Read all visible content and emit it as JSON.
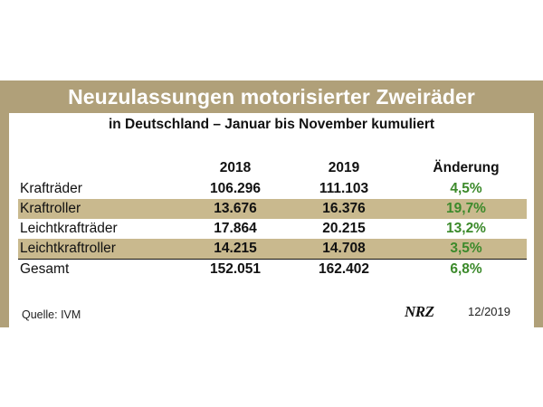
{
  "title": "Neuzulassungen motorisierter Zweiräder",
  "subtitle": "in Deutschland – Januar bis November kumuliert",
  "colors": {
    "frame": "#b0a079",
    "shade": "#c9b98e",
    "positive": "#3c8a2b"
  },
  "chart_data": {
    "type": "table",
    "columns": [
      "",
      "2018",
      "2019",
      "Änderung"
    ],
    "rows": [
      {
        "label": "Krafträder",
        "y2018": "106.296",
        "y2019": "111.103",
        "change": "4,5%",
        "shaded": false
      },
      {
        "label": "Kraftroller",
        "y2018": "13.676",
        "y2019": "16.376",
        "change": "19,7%",
        "shaded": true
      },
      {
        "label": "Leichtkrafträder",
        "y2018": "17.864",
        "y2019": "20.215",
        "change": "13,2%",
        "shaded": false
      },
      {
        "label": "Leichtkraftroller",
        "y2018": "14.215",
        "y2019": "14.708",
        "change": "3,5%",
        "shaded": true
      }
    ],
    "total": {
      "label": "Gesamt",
      "y2018": "152.051",
      "y2019": "162.402",
      "change": "6,8%"
    }
  },
  "footer": {
    "source": "Quelle: IVM",
    "logo": "NRZ",
    "date": "12/2019"
  }
}
